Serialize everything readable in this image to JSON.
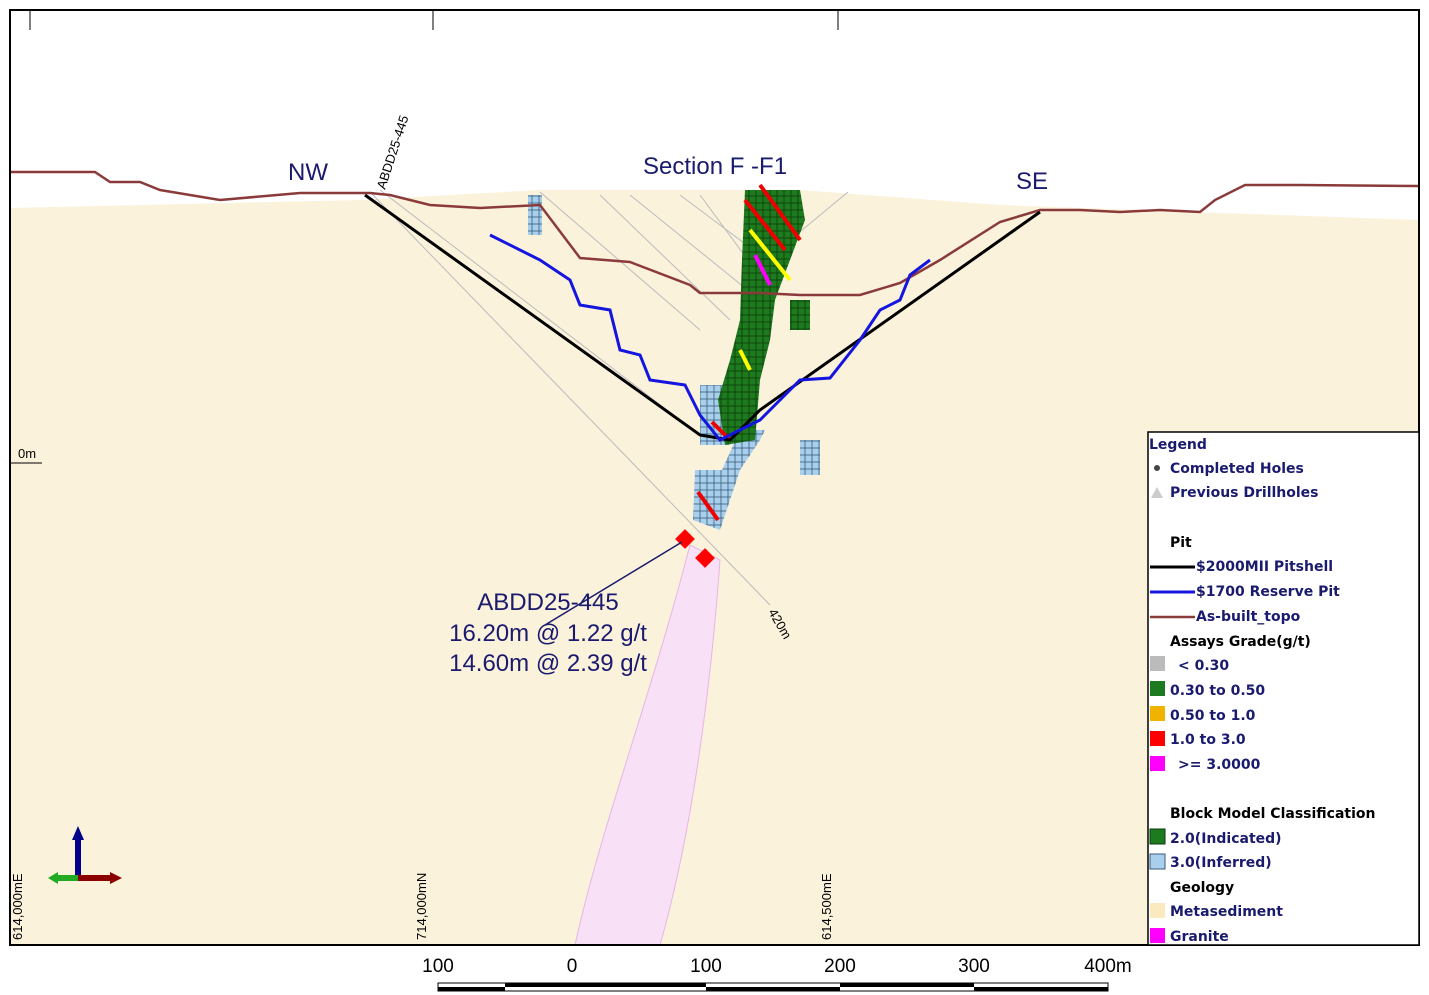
{
  "section": {
    "title": "Section F -F1",
    "left_direction": "NW",
    "right_direction": "SE",
    "depth_label": "0m"
  },
  "drillhole": {
    "id": "ABDD25-445",
    "end_depth": "420m",
    "intercept_title": "ABDD25-445",
    "intercepts": [
      "16.20m @ 1.22 g/t",
      "14.60m @ 2.39 g/t"
    ]
  },
  "grid_labels": [
    "614,000mE",
    "714,000mN",
    "614,500mE"
  ],
  "legend": {
    "title": "Legend",
    "holes": [
      "Completed Holes",
      "Previous Drillholes"
    ],
    "pit_title": "Pit",
    "pits": [
      "$2000MII Pitshell",
      "$1700 Reserve Pit",
      "As-built_topo"
    ],
    "assay_title": "Assays Grade(g/t)",
    "assays": [
      "< 0.30",
      "0.30 to 0.50",
      "0.50 to 1.0",
      "1.0 to 3.0",
      ">= 3.0000"
    ],
    "block_title": "Block Model Classification",
    "blocks": [
      "2.0(Indicated)",
      "3.0(Inferred)"
    ],
    "geology_title": "Geology",
    "geology": [
      "Metasediment",
      "Granite"
    ]
  },
  "scale_bar": [
    "100",
    "0",
    "100",
    "200",
    "300",
    "400m"
  ]
}
